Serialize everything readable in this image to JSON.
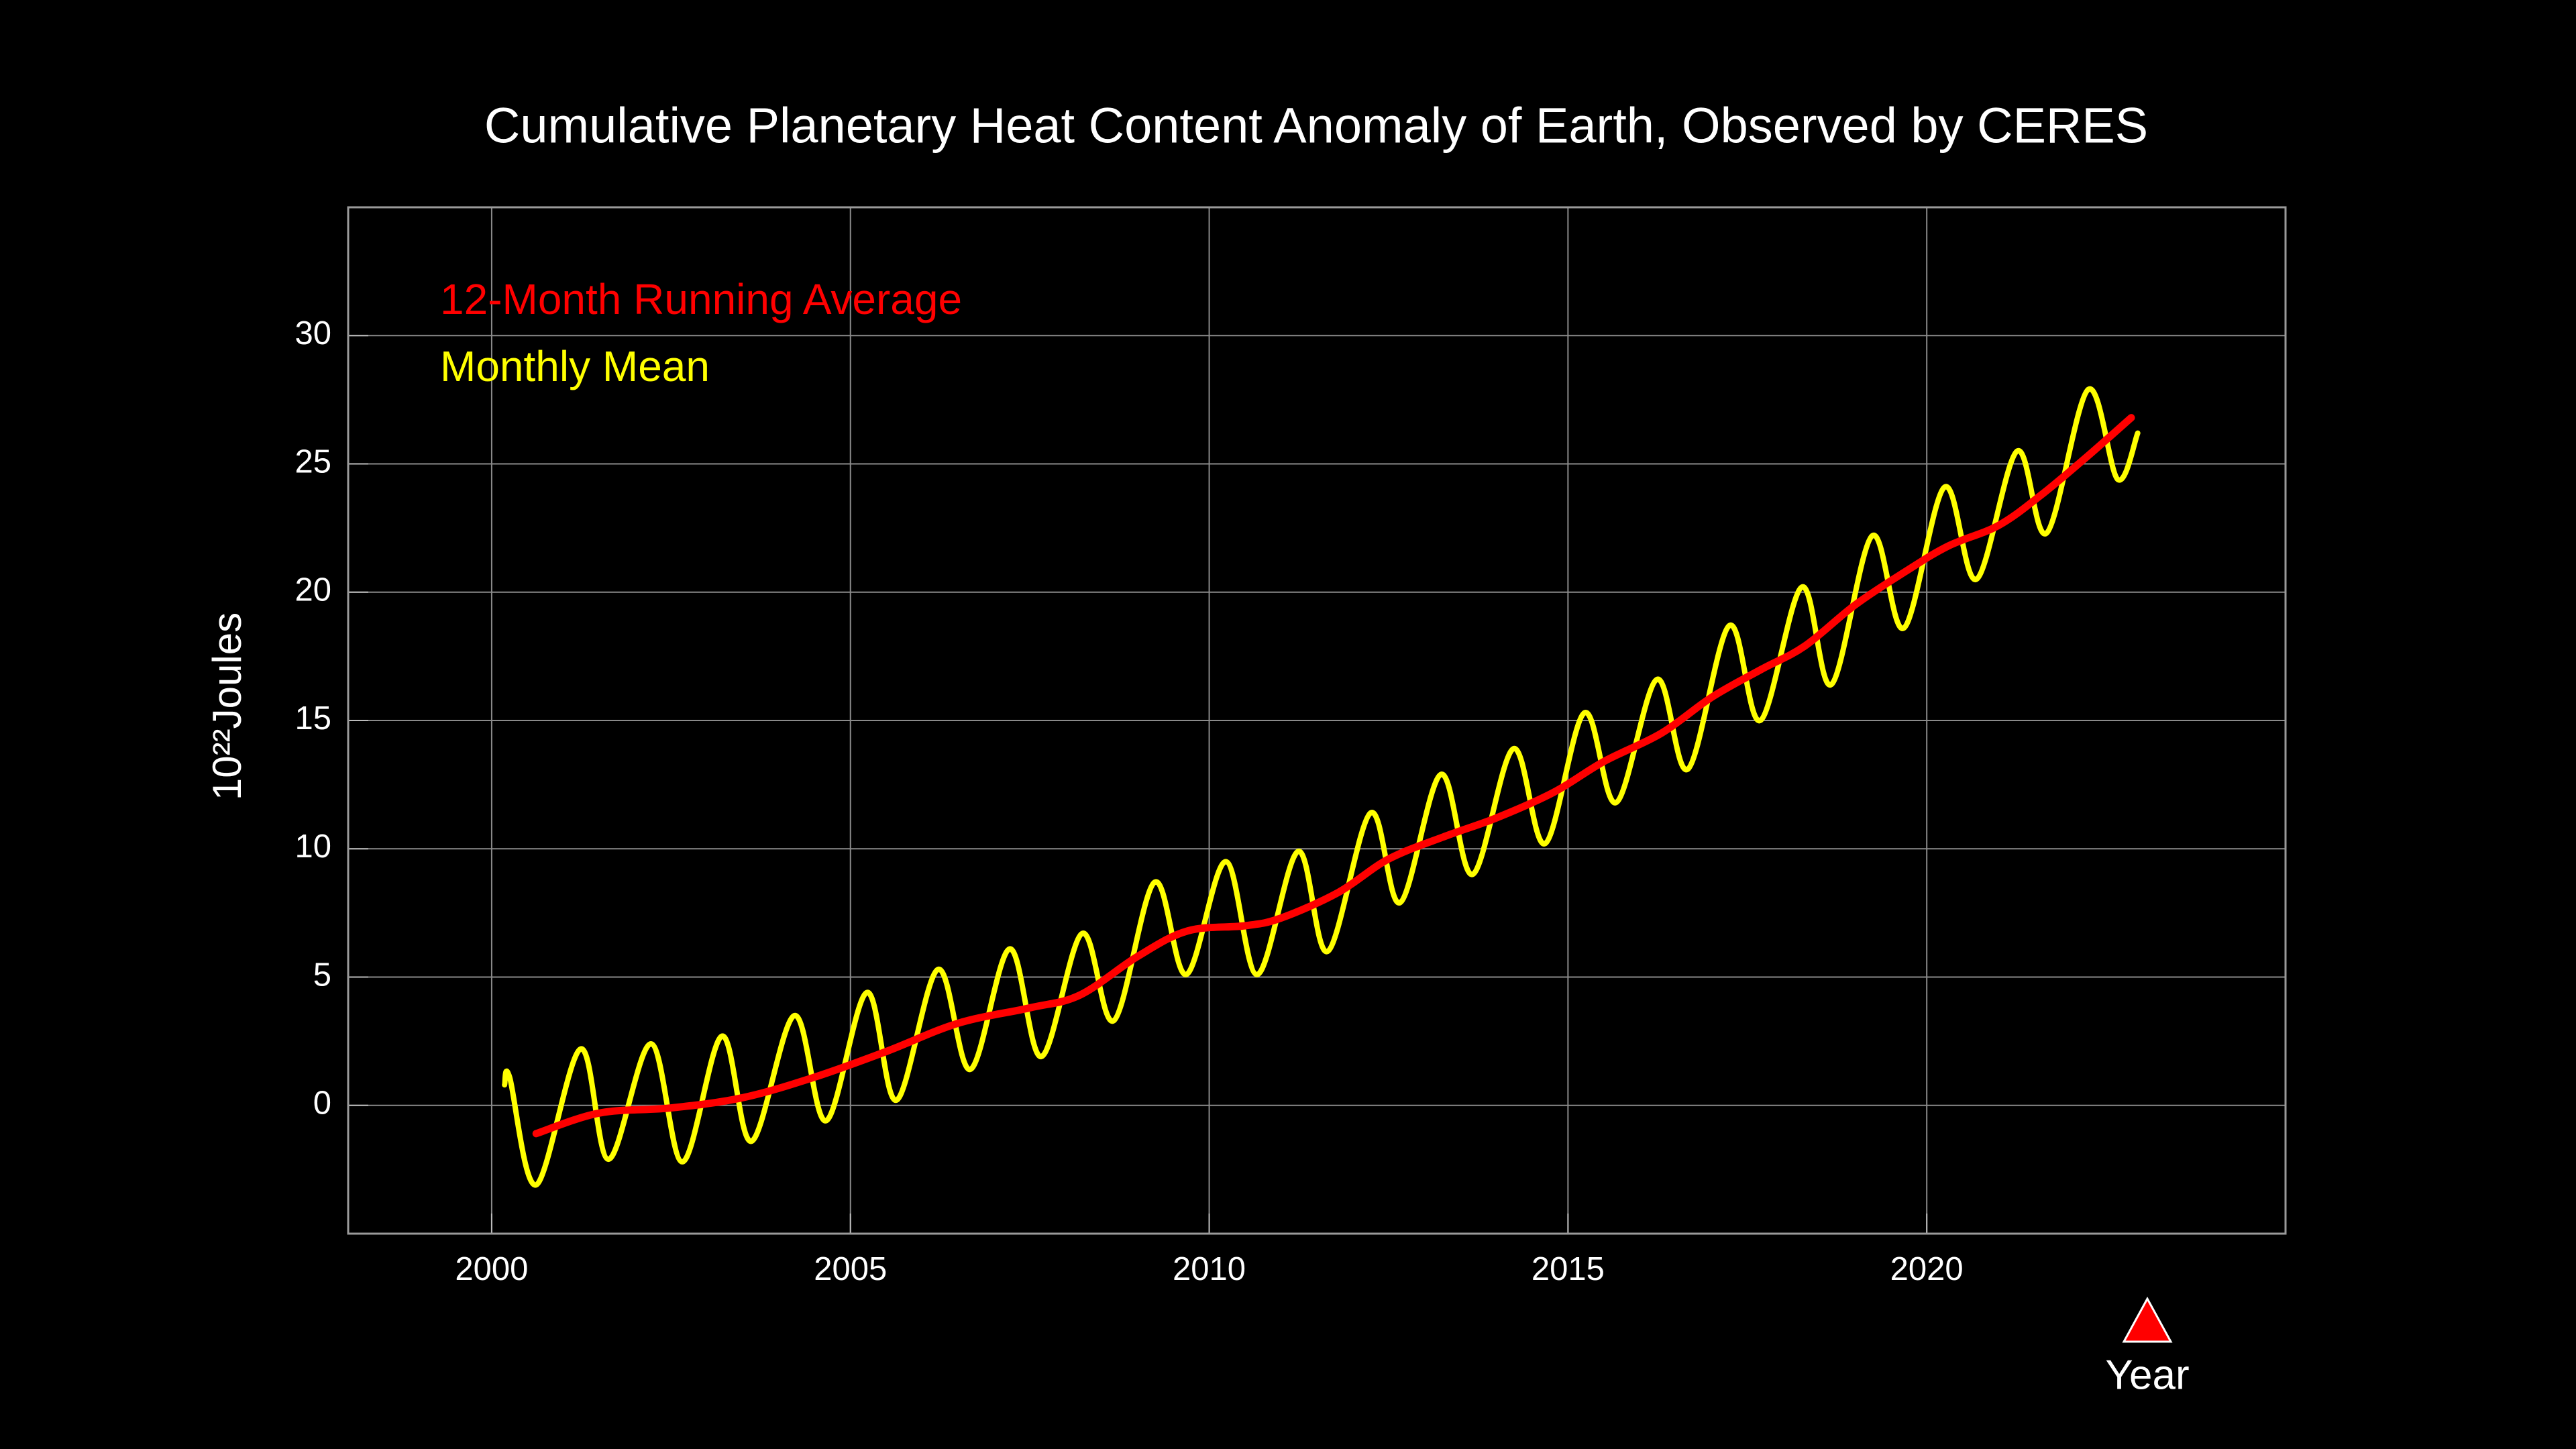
{
  "chart_data": {
    "type": "line",
    "title": "Cumulative Planetary Heat Content Anomaly of Earth, Observed by CERES",
    "ylabel": "10²²Joules",
    "xlabel": "Year",
    "xlim": [
      1998,
      2025
    ],
    "xticks": [
      2000,
      2005,
      2010,
      2015,
      2020
    ],
    "ylim": [
      -5,
      35
    ],
    "yticks": [
      0,
      5,
      10,
      15,
      20,
      25,
      30
    ],
    "grid": true,
    "legend": "upper left",
    "series": [
      {
        "name": "12-Month Running Average",
        "color": "#ff0000",
        "x": [
          2000.62,
          2001.5,
          2002.5,
          2003.5,
          2004.5,
          2005.5,
          2006.5,
          2007.5,
          2008.2,
          2009.0,
          2009.7,
          2010.5,
          2011.0,
          2011.8,
          2012.5,
          2013.3,
          2014.0,
          2014.8,
          2015.5,
          2016.3,
          2017.0,
          2017.7,
          2018.3,
          2019.0,
          2019.7,
          2020.3,
          2021.0,
          2021.6,
          2022.2,
          2022.85
        ],
        "values": [
          -1.1,
          -0.3,
          -0.1,
          0.3,
          1.1,
          2.1,
          3.2,
          3.8,
          4.3,
          5.8,
          6.8,
          7.0,
          7.3,
          8.3,
          9.6,
          10.5,
          11.2,
          12.2,
          13.4,
          14.5,
          15.9,
          17.0,
          17.9,
          19.5,
          20.8,
          21.8,
          22.6,
          23.8,
          25.2,
          26.8
        ]
      },
      {
        "name": "Monthly Mean",
        "color": "#ffff00",
        "x": [
          2000.18,
          2000.25,
          2000.62,
          2001.24,
          2001.63,
          2002.22,
          2002.66,
          2003.21,
          2003.62,
          2004.22,
          2004.66,
          2005.23,
          2005.64,
          2006.22,
          2006.67,
          2007.22,
          2007.66,
          2008.23,
          2008.67,
          2009.24,
          2009.68,
          2010.23,
          2010.67,
          2011.24,
          2011.65,
          2012.25,
          2012.66,
          2013.23,
          2013.67,
          2014.24,
          2014.68,
          2015.23,
          2015.67,
          2016.24,
          2016.67,
          2017.25,
          2017.68,
          2018.26,
          2018.67,
          2019.24,
          2019.68,
          2020.25,
          2020.69,
          2021.26,
          2021.67,
          2022.25,
          2022.66,
          2022.94
        ],
        "values": [
          0.8,
          1.1,
          -3.1,
          2.2,
          -2.1,
          2.4,
          -2.2,
          2.7,
          -1.4,
          3.5,
          -0.6,
          4.4,
          0.2,
          5.3,
          1.4,
          6.1,
          1.9,
          6.7,
          3.3,
          8.7,
          5.1,
          9.5,
          5.1,
          9.9,
          6.0,
          11.4,
          7.9,
          12.9,
          9.0,
          13.9,
          10.2,
          15.3,
          11.8,
          16.6,
          13.1,
          18.7,
          15.0,
          20.2,
          16.4,
          22.2,
          18.6,
          24.1,
          20.5,
          25.5,
          22.3,
          27.9,
          24.4,
          26.2
        ]
      }
    ]
  }
}
